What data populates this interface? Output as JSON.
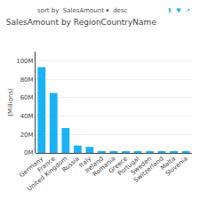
{
  "chart_data": {
    "type": "bar",
    "title": "SalesAmount by RegionCountryName",
    "annotations": [
      "sort by  SalesAmount ▾  desc",
      "⬆  ▼  ↗"
    ],
    "ylabel": "(Millions)",
    "categories": [
      "Germany",
      "France",
      "United Kingdom",
      "Russia",
      "Italy",
      "Ireland",
      "Romania",
      "Greece",
      "Portugal",
      "Sweden",
      "Switzerland",
      "Malta",
      "Slovenia"
    ],
    "values": [
      93,
      65,
      27,
      8,
      6.5,
      1.8,
      1.5,
      1.8,
      1.5,
      1.8,
      1.5,
      1.3,
      1.5
    ],
    "color": "#1ab2f5",
    "ylim": [
      0,
      110
    ],
    "yticks": [
      {
        "value": 0,
        "label": "0M"
      },
      {
        "value": 20,
        "label": "20M"
      },
      {
        "value": 40,
        "label": "40M"
      },
      {
        "value": 60,
        "label": "60M"
      },
      {
        "value": 80,
        "label": "80M"
      },
      {
        "value": 100,
        "label": "100M"
      }
    ],
    "grid": true
  }
}
